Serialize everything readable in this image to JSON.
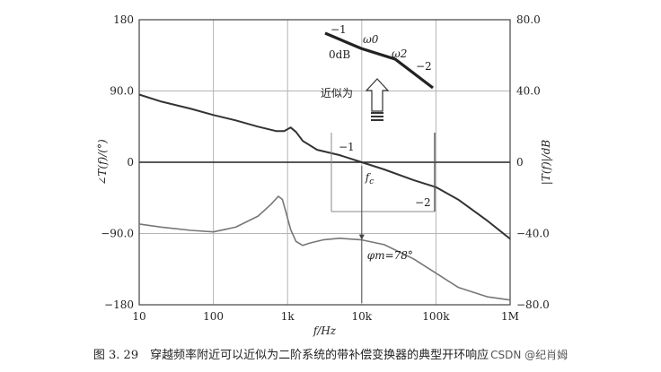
{
  "chart_data": {
    "type": "line",
    "xscale": "log",
    "xlim": [
      10,
      1000000
    ],
    "x_ticks": [
      "10",
      "100",
      "1k",
      "10k",
      "100k",
      "1M"
    ],
    "xlabel": "f/Hz",
    "left_ylabel": "∠T(f)/(°)",
    "left_ylim": [
      -180,
      180
    ],
    "left_ticks": [
      "180",
      "90.0",
      "0",
      "−90.0",
      "−180"
    ],
    "right_ylabel": "|T(f)|/dB",
    "right_ylim": [
      -80,
      80
    ],
    "right_ticks": [
      "80.0",
      "40.0",
      "0",
      "−40.0",
      "−80.0"
    ],
    "grid": true,
    "series": [
      {
        "axis": "right",
        "color": "#333333",
        "x": [
          10,
          20,
          50,
          100,
          200,
          400,
          700,
          900,
          1100,
          1300,
          1600,
          2500,
          5000,
          10000,
          20000,
          50000,
          100000,
          200000,
          500000,
          1000000
        ],
        "y": [
          38,
          34,
          30,
          26.5,
          23.5,
          20,
          17.5,
          17.5,
          19.5,
          17,
          12,
          7,
          4,
          0,
          -4,
          -10,
          -14,
          -21,
          -33,
          -43
        ]
      },
      {
        "axis": "left",
        "color": "#777777",
        "x": [
          10,
          20,
          50,
          100,
          200,
          400,
          600,
          750,
          850,
          950,
          1100,
          1300,
          1600,
          2000,
          3000,
          5000,
          10000,
          20000,
          50000,
          100000,
          200000,
          500000,
          1000000
        ],
        "y": [
          -78,
          -82,
          -86,
          -88,
          -82,
          -68,
          -53,
          -43,
          -47,
          -63,
          -85,
          -100,
          -105,
          -102,
          -98,
          -96,
          -98,
          -104,
          -122,
          -140,
          -158,
          -170,
          -174
        ]
      }
    ],
    "annotations": {
      "slope_minus1": "−1",
      "slope_minus2": "−2",
      "fc": "fc",
      "phase_margin": "φm=78°"
    },
    "inset": {
      "slope_minus1": "−1",
      "omega0": "ω0",
      "zero_db": "0dB",
      "omega2": "ω2",
      "slope_minus2": "−2",
      "approx_label": "近似为"
    }
  },
  "caption": {
    "text": "图 3. 29　穿越频率附近可以近似为二阶系统的带补偿变换器的典型开环响应",
    "watermark": "CSDN @纪肖姆"
  }
}
